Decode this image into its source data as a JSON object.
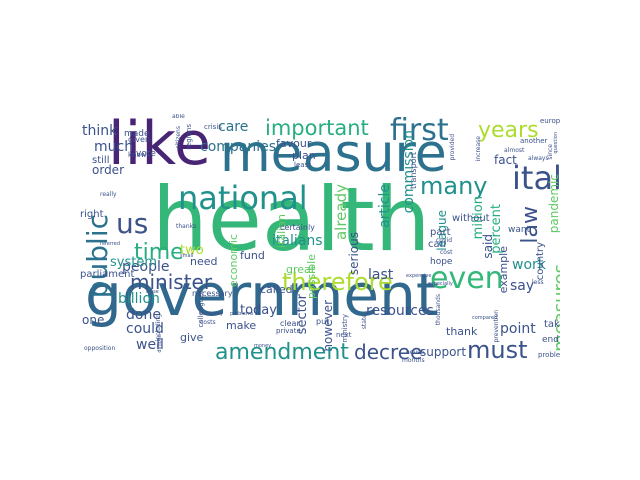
{
  "palette": {
    "background": "#ffffff",
    "deep_purple": "#440154",
    "indigo": "#482475",
    "slate_blue": "#3b528b",
    "steel_blue": "#2c728e",
    "teal": "#21918c",
    "sea_green": "#28ae80",
    "green": "#5ec962",
    "lime": "#addc30",
    "yellow": "#fde725"
  },
  "words": [
    {
      "text": "government",
      "color": "#31688e"
    },
    {
      "text": "health",
      "color": "#35b779"
    },
    {
      "text": "measure",
      "color": "#2c728e"
    },
    {
      "text": "like",
      "color": "#482475"
    },
    {
      "text": "national",
      "color": "#21918c"
    },
    {
      "text": "first",
      "color": "#2c728e"
    },
    {
      "text": "important",
      "color": "#28ae80"
    },
    {
      "text": "years",
      "color": "#addc30"
    },
    {
      "text": "italy",
      "color": "#3b528b"
    },
    {
      "text": "even",
      "color": "#35b779"
    },
    {
      "text": "therefore",
      "color": "#addc30"
    },
    {
      "text": "amendment",
      "color": "#21918c"
    },
    {
      "text": "must",
      "color": "#3b528b"
    },
    {
      "text": "public",
      "color": "#2c728e"
    },
    {
      "text": "us",
      "color": "#3b528b"
    },
    {
      "text": "time",
      "color": "#28ae80"
    },
    {
      "text": "minister",
      "color": "#3b528b"
    },
    {
      "text": "many",
      "color": "#21918c"
    },
    {
      "text": "law",
      "color": "#3b528b"
    },
    {
      "text": "decree",
      "color": "#3b528b"
    },
    {
      "text": "measures",
      "color": "#5ec962"
    },
    {
      "text": "companies",
      "color": "#2c728e"
    },
    {
      "text": "care",
      "color": "#2c728e"
    },
    {
      "text": "italians",
      "color": "#21918c"
    },
    {
      "text": "people",
      "color": "#3b528b"
    },
    {
      "text": "billion",
      "color": "#21918c"
    },
    {
      "text": "already",
      "color": "#5ec962"
    },
    {
      "text": "article",
      "color": "#21918c"
    },
    {
      "text": "commission",
      "color": "#21918c"
    },
    {
      "text": "million",
      "color": "#28ae80"
    },
    {
      "text": "last",
      "color": "#3b528b"
    },
    {
      "text": "serious",
      "color": "#3b528b"
    },
    {
      "text": "resources",
      "color": "#3b528b"
    },
    {
      "text": "work",
      "color": "#21918c"
    },
    {
      "text": "say",
      "color": "#3b528b"
    },
    {
      "text": "point",
      "color": "#3b528b"
    },
    {
      "text": "done",
      "color": "#3b528b"
    },
    {
      "text": "two",
      "color": "#addc30"
    },
    {
      "text": "system",
      "color": "#21918c"
    },
    {
      "text": "think",
      "color": "#3b528b"
    },
    {
      "text": "much",
      "color": "#3b528b"
    },
    {
      "text": "order",
      "color": "#3b528b"
    },
    {
      "text": "one",
      "color": "#3b528b"
    },
    {
      "text": "could",
      "color": "#3b528b"
    },
    {
      "text": "well",
      "color": "#3b528b"
    },
    {
      "text": "today",
      "color": "#3b528b"
    },
    {
      "text": "sector",
      "color": "#3b528b"
    },
    {
      "text": "however",
      "color": "#3b528b"
    },
    {
      "text": "support",
      "color": "#3b528b"
    },
    {
      "text": "percent",
      "color": "#28ae80"
    },
    {
      "text": "said",
      "color": "#3b528b"
    },
    {
      "text": "league",
      "color": "#21918c"
    },
    {
      "text": "pandemic",
      "color": "#5ec962"
    },
    {
      "text": "fund",
      "color": "#3b528b"
    },
    {
      "text": "economic",
      "color": "#5ec962"
    },
    {
      "text": "italian",
      "color": "#5ec962"
    },
    {
      "text": "possible",
      "color": "#5ec962"
    },
    {
      "text": "favour",
      "color": "#3b528b"
    },
    {
      "text": "plan",
      "color": "#3b528b"
    },
    {
      "text": "great",
      "color": "#5ec962"
    },
    {
      "text": "called",
      "color": "#3b528b"
    },
    {
      "text": "make",
      "color": "#3b528b"
    },
    {
      "text": "give",
      "color": "#3b528b"
    },
    {
      "text": "thank",
      "color": "#3b528b"
    },
    {
      "text": "need",
      "color": "#3b528b"
    },
    {
      "text": "made",
      "color": "#3b528b"
    },
    {
      "text": "vote",
      "color": "#3b528b"
    },
    {
      "text": "still",
      "color": "#3b528b"
    },
    {
      "text": "right",
      "color": "#3b528b"
    },
    {
      "text": "parliament",
      "color": "#3b528b"
    },
    {
      "text": "example",
      "color": "#3b528b"
    },
    {
      "text": "country",
      "color": "#3b528b"
    },
    {
      "text": "want",
      "color": "#3b528b"
    },
    {
      "text": "can",
      "color": "#3b528b"
    },
    {
      "text": "part",
      "color": "#3b528b"
    },
    {
      "text": "hope",
      "color": "#3b528b"
    },
    {
      "text": "take",
      "color": "#3b528b"
    },
    {
      "text": "end",
      "color": "#3b528b"
    },
    {
      "text": "fact",
      "color": "#3b528b"
    },
    {
      "text": "without",
      "color": "#3b528b"
    },
    {
      "text": "european",
      "color": "#3b528b"
    },
    {
      "text": "transport",
      "color": "#3b528b"
    },
    {
      "text": "regions",
      "color": "#3b528b"
    },
    {
      "text": "given",
      "color": "#3b528b"
    },
    {
      "text": "crisis",
      "color": "#3b528b"
    },
    {
      "text": "put",
      "color": "#3b528b"
    },
    {
      "text": "clear",
      "color": "#3b528b"
    },
    {
      "text": "private",
      "color": "#3b528b"
    },
    {
      "text": "problem",
      "color": "#3b528b"
    },
    {
      "text": "necessary",
      "color": "#3b528b"
    },
    {
      "text": "ministry",
      "color": "#3b528b"
    },
    {
      "text": "state",
      "color": "#3b528b"
    },
    {
      "text": "know",
      "color": "#3b528b"
    },
    {
      "text": "least",
      "color": "#3b528b"
    },
    {
      "text": "next",
      "color": "#3b528b"
    },
    {
      "text": "months",
      "color": "#3b528b"
    },
    {
      "text": "house",
      "color": "#3b528b"
    },
    {
      "text": "since",
      "color": "#3b528b"
    },
    {
      "text": "another",
      "color": "#3b528b"
    },
    {
      "text": "always",
      "color": "#3b528b"
    },
    {
      "text": "certainly",
      "color": "#3b528b"
    },
    {
      "text": "colleagues",
      "color": "#3b528b"
    },
    {
      "text": "provided",
      "color": "#3b528b"
    },
    {
      "text": "increase",
      "color": "#3b528b"
    },
    {
      "text": "covid",
      "color": "#3b528b"
    },
    {
      "text": "costs",
      "color": "#3b528b"
    },
    {
      "text": "cost",
      "color": "#3b528b"
    },
    {
      "text": "almost",
      "color": "#3b528b"
    },
    {
      "text": "really",
      "color": "#3b528b"
    },
    {
      "text": "thanks",
      "color": "#3b528b"
    },
    {
      "text": "question",
      "color": "#3b528b"
    },
    {
      "text": "citizens",
      "color": "#3b528b"
    },
    {
      "text": "able",
      "color": "#3b528b"
    },
    {
      "text": "small",
      "color": "#3b528b"
    },
    {
      "text": "less",
      "color": "#3b528b"
    },
    {
      "text": "prevention",
      "color": "#3b528b"
    },
    {
      "text": "compared",
      "color": "#3b528b"
    },
    {
      "text": "thousands",
      "color": "#3b528b"
    },
    {
      "text": "especially",
      "color": "#3b528b"
    },
    {
      "text": "expensive",
      "color": "#3b528b"
    },
    {
      "text": "referred",
      "color": "#3b528b"
    },
    {
      "text": "including",
      "color": "#3b528b"
    },
    {
      "text": "problems",
      "color": "#3b528b"
    },
    {
      "text": "company",
      "color": "#3b528b"
    },
    {
      "text": "opposition",
      "color": "#3b528b"
    },
    {
      "text": "difficult",
      "color": "#3b528b"
    },
    {
      "text": "money",
      "color": "#3b528b"
    },
    {
      "text": "close",
      "color": "#3b528b"
    }
  ]
}
